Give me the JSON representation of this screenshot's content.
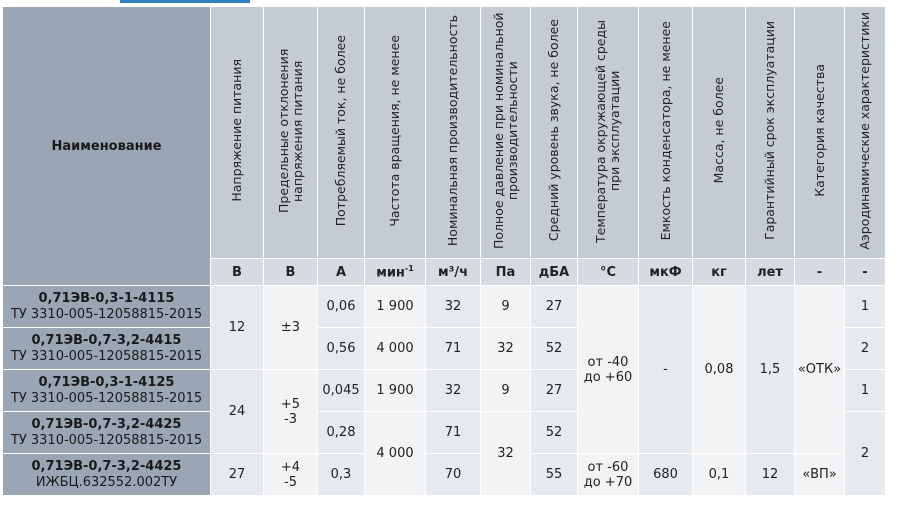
{
  "header": {
    "name": "Наименование",
    "columns": [
      "Напряжение  питания",
      "Предельные отклонения напряжения питания",
      "Потребляемый ток, не более",
      "Частота вращения, не менее",
      "Номинальная производительность",
      "Полное давление при номинальной производительности",
      "Средний уровень звука, не более",
      "Температура окружающей среды при эксплуатации",
      "Емкость конденсатора, не менее",
      "Масса, не более",
      "Гарантийный срок эксплуатации",
      "Категория качества",
      "Аэродинамические характеристики"
    ],
    "units": [
      "В",
      "В",
      "А",
      "мин",
      "м³/ч",
      "Па",
      "дБА",
      "°C",
      "мкФ",
      "кг",
      "лет",
      "-",
      "-"
    ],
    "unit_sup": "-1"
  },
  "rows": [
    {
      "name": "0,71ЭВ-0,3-1-4115",
      "spec": "ТУ 3310-005-12058815-2015"
    },
    {
      "name": "0,71ЭВ-0,7-3,2-4415",
      "spec": "ТУ 3310-005-12058815-2015"
    },
    {
      "name": "0,71ЭВ-0,3-1-4125",
      "spec": "ТУ 3310-005-12058815-2015"
    },
    {
      "name": "0,71ЭВ-0,7-3,2-4425",
      "spec": "ТУ 3310-005-12058815-2015"
    },
    {
      "name": "0,71ЭВ-0,7-3,2-4425",
      "spec": "ИЖБЦ.632552.002ТУ"
    }
  ],
  "values": {
    "voltage": [
      "12",
      "24",
      "27"
    ],
    "deviation": [
      "±3",
      "+5",
      "-3",
      "+4",
      "-5"
    ],
    "current": [
      "0,06",
      "0,56",
      "0,045",
      "0,28",
      "0,3"
    ],
    "rpm": [
      "1 900",
      "4 000",
      "1 900",
      "4 000"
    ],
    "flow": [
      "32",
      "71",
      "32",
      "71",
      "70"
    ],
    "pressure": [
      "9",
      "32",
      "9",
      "32"
    ],
    "noise": [
      "27",
      "52",
      "27",
      "52",
      "55"
    ],
    "temp": [
      "от -40",
      "до +60",
      "от -60",
      "до +70"
    ],
    "capacitor": [
      "-",
      "680"
    ],
    "mass": [
      "0,08",
      "0,1"
    ],
    "warranty": [
      "1,5",
      "12"
    ],
    "quality": [
      "«ОТК»",
      "«ВП»"
    ],
    "aero": [
      "1",
      "2",
      "1",
      "2"
    ]
  }
}
